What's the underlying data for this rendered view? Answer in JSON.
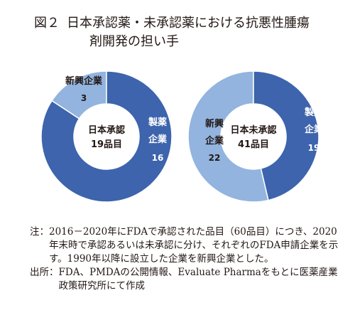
{
  "figure": {
    "number": "図２",
    "title_line1": "日本承認薬・未承認薬における抗悪性腫瘍",
    "title_line2": "剤開発の担い手"
  },
  "colors": {
    "pharma": "#3d64ac",
    "new": "#92b4df",
    "text": "#231815"
  },
  "chart_data": [
    {
      "type": "pie",
      "center_label": [
        "日本承認",
        "19品目"
      ],
      "total": 19,
      "slices": [
        {
          "label": "新興企業",
          "value": 3,
          "color": "#92b4df"
        },
        {
          "label": "製薬企業",
          "value": 16,
          "color": "#3d64ac"
        }
      ]
    },
    {
      "type": "pie",
      "center_label": [
        "日本未承認",
        "41品目"
      ],
      "total": 41,
      "slices": [
        {
          "label": "新興企業",
          "value": 22,
          "color": "#92b4df"
        },
        {
          "label": "製薬企業",
          "value": 19,
          "color": "#3d64ac"
        }
      ]
    }
  ],
  "notes": {
    "note_head": "注：",
    "note_body": "2016－2020年にFDAで承認された品目（60品目）につき、2020年末時で承認あるいは未承認に分け、それぞれのFDA申請企業を示す。1990年以降に設立した企業を新興企業とした。",
    "source_head": "出所：",
    "source_body": "FDA、PMDAの公開情報、Evaluate Pharmaをもとに医薬産業政策研究所にて作成"
  }
}
